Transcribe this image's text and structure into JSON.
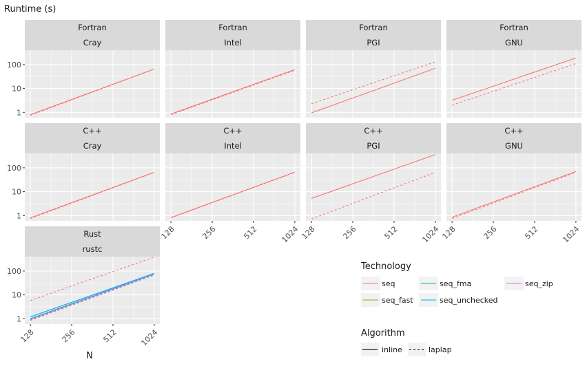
{
  "chart_data": {
    "type": "line",
    "title": "",
    "ylabel": "Runtime (s)",
    "xlabel": "N",
    "x_scale": "log2",
    "y_scale": "log10",
    "x_ticks": [
      "128",
      "256",
      "512",
      "1024"
    ],
    "y_ticks": [
      "1",
      "10",
      "100"
    ],
    "xlim": [
      128,
      1024
    ],
    "ylim": [
      0.6,
      400
    ],
    "grid": true,
    "legend": {
      "placement": "bottom-right",
      "technology_title": "Technology",
      "technology_entries": [
        {
          "name": "seq",
          "color": "#F8766D"
        },
        {
          "name": "seq_fast",
          "color": "#A3A500"
        },
        {
          "name": "seq_fma",
          "color": "#00BF7D"
        },
        {
          "name": "seq_unchecked",
          "color": "#00B0F6"
        },
        {
          "name": "seq_zip",
          "color": "#E76BF3"
        }
      ],
      "algorithm_title": "Algorithm",
      "algorithm_entries": [
        {
          "name": "inline",
          "dash": "solid"
        },
        {
          "name": "laplap",
          "dash": "dashed"
        }
      ]
    },
    "panels": [
      {
        "language": "Fortran",
        "compiler": "Cray",
        "series": [
          {
            "technology": "seq",
            "algorithm": "inline",
            "x": [
              128,
              1024
            ],
            "y": [
              0.8,
              65
            ]
          },
          {
            "technology": "seq",
            "algorithm": "laplap",
            "x": [
              128,
              1024
            ],
            "y": [
              0.75,
              65
            ]
          }
        ]
      },
      {
        "language": "Fortran",
        "compiler": "Intel",
        "series": [
          {
            "technology": "seq",
            "algorithm": "inline",
            "x": [
              128,
              1024
            ],
            "y": [
              0.85,
              62
            ]
          },
          {
            "technology": "seq",
            "algorithm": "laplap",
            "x": [
              128,
              1024
            ],
            "y": [
              0.8,
              58
            ]
          }
        ]
      },
      {
        "language": "Fortran",
        "compiler": "PGI",
        "series": [
          {
            "technology": "seq",
            "algorithm": "inline",
            "x": [
              128,
              1024
            ],
            "y": [
              0.95,
              70
            ]
          },
          {
            "technology": "seq",
            "algorithm": "laplap",
            "x": [
              128,
              1024
            ],
            "y": [
              2.3,
              130
            ]
          }
        ]
      },
      {
        "language": "Fortran",
        "compiler": "GNU",
        "series": [
          {
            "technology": "seq",
            "algorithm": "inline",
            "x": [
              128,
              1024
            ],
            "y": [
              3.2,
              190
            ]
          },
          {
            "technology": "seq",
            "algorithm": "laplap",
            "x": [
              128,
              1024
            ],
            "y": [
              2.0,
              110
            ]
          }
        ]
      },
      {
        "language": "C++",
        "compiler": "Cray",
        "series": [
          {
            "technology": "seq",
            "algorithm": "inline",
            "x": [
              128,
              1024
            ],
            "y": [
              0.8,
              65
            ]
          },
          {
            "technology": "seq",
            "algorithm": "laplap",
            "x": [
              128,
              1024
            ],
            "y": [
              0.75,
              64
            ]
          }
        ]
      },
      {
        "language": "C++",
        "compiler": "Intel",
        "series": [
          {
            "technology": "seq",
            "algorithm": "inline",
            "x": [
              128,
              1024
            ],
            "y": [
              0.82,
              66
            ]
          },
          {
            "technology": "seq",
            "algorithm": "laplap",
            "x": [
              128,
              1024
            ],
            "y": [
              0.8,
              64
            ]
          }
        ]
      },
      {
        "language": "C++",
        "compiler": "PGI",
        "series": [
          {
            "technology": "seq",
            "algorithm": "inline",
            "x": [
              128,
              1024
            ],
            "y": [
              5.2,
              360
            ]
          },
          {
            "technology": "seq",
            "algorithm": "laplap",
            "x": [
              128,
              1024
            ],
            "y": [
              0.72,
              65
            ]
          }
        ]
      },
      {
        "language": "C++",
        "compiler": "GNU",
        "series": [
          {
            "technology": "seq",
            "algorithm": "inline",
            "x": [
              128,
              1024
            ],
            "y": [
              0.85,
              70
            ]
          },
          {
            "technology": "seq",
            "algorithm": "laplap",
            "x": [
              128,
              1024
            ],
            "y": [
              0.75,
              65
            ]
          }
        ]
      },
      {
        "language": "Rust",
        "compiler": "rustc",
        "series": [
          {
            "technology": "seq",
            "algorithm": "laplap",
            "x": [
              128,
              1024
            ],
            "y": [
              5.8,
              380
            ]
          },
          {
            "technology": "seq",
            "algorithm": "inline",
            "x": [
              128,
              1024
            ],
            "y": [
              0.95,
              75
            ]
          },
          {
            "technology": "seq_fast",
            "algorithm": "inline",
            "x": [
              128,
              1024
            ],
            "y": [
              0.95,
              75
            ]
          },
          {
            "technology": "seq_fast",
            "algorithm": "laplap",
            "x": [
              128,
              1024
            ],
            "y": [
              0.85,
              68
            ]
          },
          {
            "technology": "seq_fma",
            "algorithm": "inline",
            "x": [
              128,
              1024
            ],
            "y": [
              1.0,
              78
            ]
          },
          {
            "technology": "seq_fma",
            "algorithm": "laplap",
            "x": [
              128,
              1024
            ],
            "y": [
              0.9,
              70
            ]
          },
          {
            "technology": "seq_zip",
            "algorithm": "inline",
            "x": [
              128,
              1024
            ],
            "y": [
              0.97,
              76
            ]
          },
          {
            "technology": "seq_zip",
            "algorithm": "laplap",
            "x": [
              128,
              1024
            ],
            "y": [
              0.88,
              69
            ]
          },
          {
            "technology": "seq_unchecked",
            "algorithm": "inline",
            "x": [
              128,
              1024
            ],
            "y": [
              1.2,
              80
            ]
          },
          {
            "technology": "seq_unchecked",
            "algorithm": "laplap",
            "x": [
              128,
              1024
            ],
            "y": [
              0.95,
              72
            ]
          }
        ]
      }
    ]
  },
  "colors": {
    "panel_bg": "#EBEBEB",
    "strip_bg": "#D9D9D9",
    "grid_major": "#FFFFFF",
    "text": "#1A1A1A",
    "axis_text": "#4D4D4D"
  }
}
